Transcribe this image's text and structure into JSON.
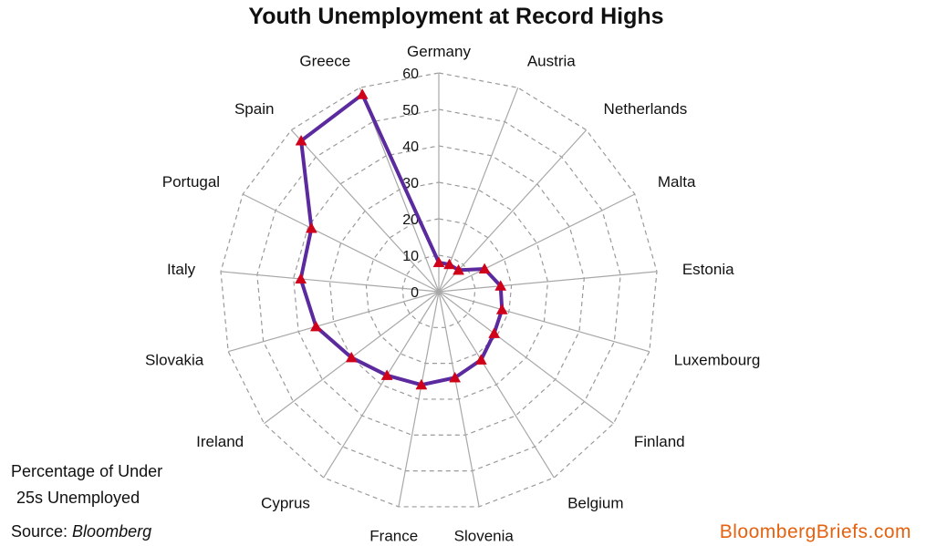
{
  "chart_data": {
    "type": "radar",
    "title": "Youth Unemployment at Record Highs",
    "categories": [
      "Germany",
      "Austria",
      "Netherlands",
      "Malta",
      "Estonia",
      "Luxembourg",
      "Finland",
      "Belgium",
      "Slovenia",
      "France",
      "Cyprus",
      "Ireland",
      "Slovakia",
      "Italy",
      "Portugal",
      "Spain",
      "Greece"
    ],
    "series": [
      {
        "values": [
          8,
          8,
          8,
          14,
          17,
          18,
          19,
          22,
          24,
          26,
          27,
          30,
          35,
          38,
          39,
          56,
          58
        ],
        "color": "#5b2a9e",
        "marker_color": "#d0021b"
      }
    ],
    "rlim": [
      0,
      60
    ],
    "ticks": [
      0,
      10,
      20,
      30,
      40,
      50,
      60
    ],
    "grid": true
  },
  "footnote": {
    "line1": "Percentage of Under",
    "line2": "25s Unemployed",
    "source_label": "Source: ",
    "source_name": "Bloomberg"
  },
  "brand": "BloombergBriefs.com"
}
